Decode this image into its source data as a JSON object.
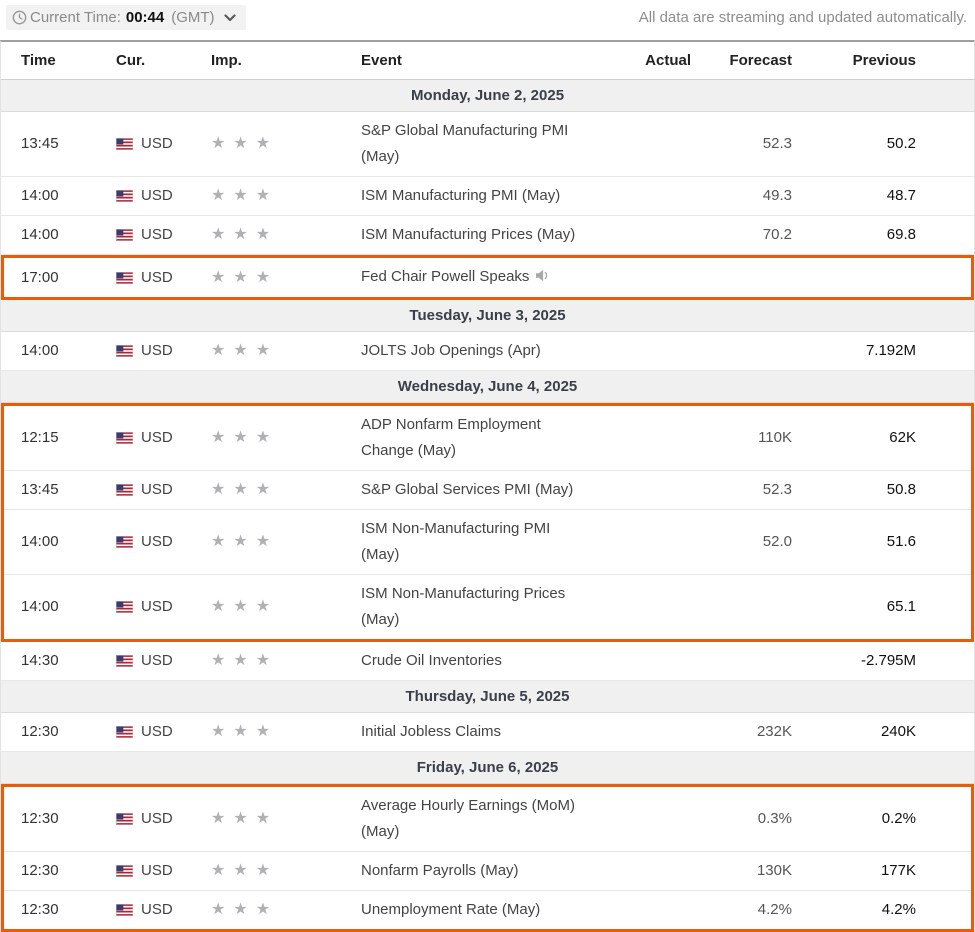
{
  "topbar": {
    "current_time_label": "Current Time:",
    "current_time_value": "00:44",
    "timezone": "(GMT)",
    "streaming_note": "All data are streaming and updated automatically."
  },
  "icons": {
    "clock": "clock-icon",
    "chevron_down": "chevron-down-icon",
    "us_flag": "us-flag-icon",
    "star": "★",
    "speaker": "speaker-icon"
  },
  "colors": {
    "highlight_border": "#ec5b0c",
    "day_header_bg": "#f0f0f0",
    "star_color": "#b1b1b5",
    "flag_red": "#b22234",
    "flag_blue": "#3c3b6e"
  },
  "table": {
    "columns": [
      "Time",
      "Cur.",
      "Imp.",
      "Event",
      "Actual",
      "Forecast",
      "Previous"
    ],
    "days": [
      {
        "label": "Monday, June 2, 2025",
        "rows": [
          {
            "time": "13:45",
            "currency": "USD",
            "importance": 3,
            "event": "S&P Global Manufacturing PMI\n(May)",
            "actual": "",
            "forecast": "52.3",
            "previous": "50.2",
            "speaker": false,
            "highlight": false
          },
          {
            "time": "14:00",
            "currency": "USD",
            "importance": 3,
            "event": "ISM Manufacturing PMI (May)",
            "actual": "",
            "forecast": "49.3",
            "previous": "48.7",
            "speaker": false,
            "highlight": false
          },
          {
            "time": "14:00",
            "currency": "USD",
            "importance": 3,
            "event": "ISM Manufacturing Prices (May)",
            "actual": "",
            "forecast": "70.2",
            "previous": "69.8",
            "speaker": false,
            "highlight": false
          },
          {
            "time": "17:00",
            "currency": "USD",
            "importance": 3,
            "event": "Fed Chair Powell Speaks",
            "actual": "",
            "forecast": "",
            "previous": "",
            "speaker": true,
            "highlight": true
          }
        ]
      },
      {
        "label": "Tuesday, June 3, 2025",
        "rows": [
          {
            "time": "14:00",
            "currency": "USD",
            "importance": 3,
            "event": "JOLTS Job Openings (Apr)",
            "actual": "",
            "forecast": "",
            "previous": "7.192M",
            "speaker": false,
            "highlight": false
          }
        ]
      },
      {
        "label": "Wednesday, June 4, 2025",
        "rows": [
          {
            "time": "12:15",
            "currency": "USD",
            "importance": 3,
            "event": "ADP Nonfarm Employment\nChange (May)",
            "actual": "",
            "forecast": "110K",
            "previous": "62K",
            "speaker": false,
            "highlight": true
          },
          {
            "time": "13:45",
            "currency": "USD",
            "importance": 3,
            "event": "S&P Global Services PMI (May)",
            "actual": "",
            "forecast": "52.3",
            "previous": "50.8",
            "speaker": false,
            "highlight": true
          },
          {
            "time": "14:00",
            "currency": "USD",
            "importance": 3,
            "event": "ISM Non-Manufacturing PMI\n(May)",
            "actual": "",
            "forecast": "52.0",
            "previous": "51.6",
            "speaker": false,
            "highlight": true
          },
          {
            "time": "14:00",
            "currency": "USD",
            "importance": 3,
            "event": "ISM Non-Manufacturing Prices\n(May)",
            "actual": "",
            "forecast": "",
            "previous": "65.1",
            "speaker": false,
            "highlight": true
          },
          {
            "time": "14:30",
            "currency": "USD",
            "importance": 3,
            "event": "Crude Oil Inventories",
            "actual": "",
            "forecast": "",
            "previous": "-2.795M",
            "speaker": false,
            "highlight": false
          }
        ]
      },
      {
        "label": "Thursday, June 5, 2025",
        "rows": [
          {
            "time": "12:30",
            "currency": "USD",
            "importance": 3,
            "event": "Initial Jobless Claims",
            "actual": "",
            "forecast": "232K",
            "previous": "240K",
            "speaker": false,
            "highlight": false
          }
        ]
      },
      {
        "label": "Friday, June 6, 2025",
        "rows": [
          {
            "time": "12:30",
            "currency": "USD",
            "importance": 3,
            "event": "Average Hourly Earnings (MoM)\n(May)",
            "actual": "",
            "forecast": "0.3%",
            "previous": "0.2%",
            "speaker": false,
            "highlight": true
          },
          {
            "time": "12:30",
            "currency": "USD",
            "importance": 3,
            "event": "Nonfarm Payrolls (May)",
            "actual": "",
            "forecast": "130K",
            "previous": "177K",
            "speaker": false,
            "highlight": true
          },
          {
            "time": "12:30",
            "currency": "USD",
            "importance": 3,
            "event": "Unemployment Rate (May)",
            "actual": "",
            "forecast": "4.2%",
            "previous": "4.2%",
            "speaker": false,
            "highlight": true
          }
        ]
      }
    ]
  }
}
